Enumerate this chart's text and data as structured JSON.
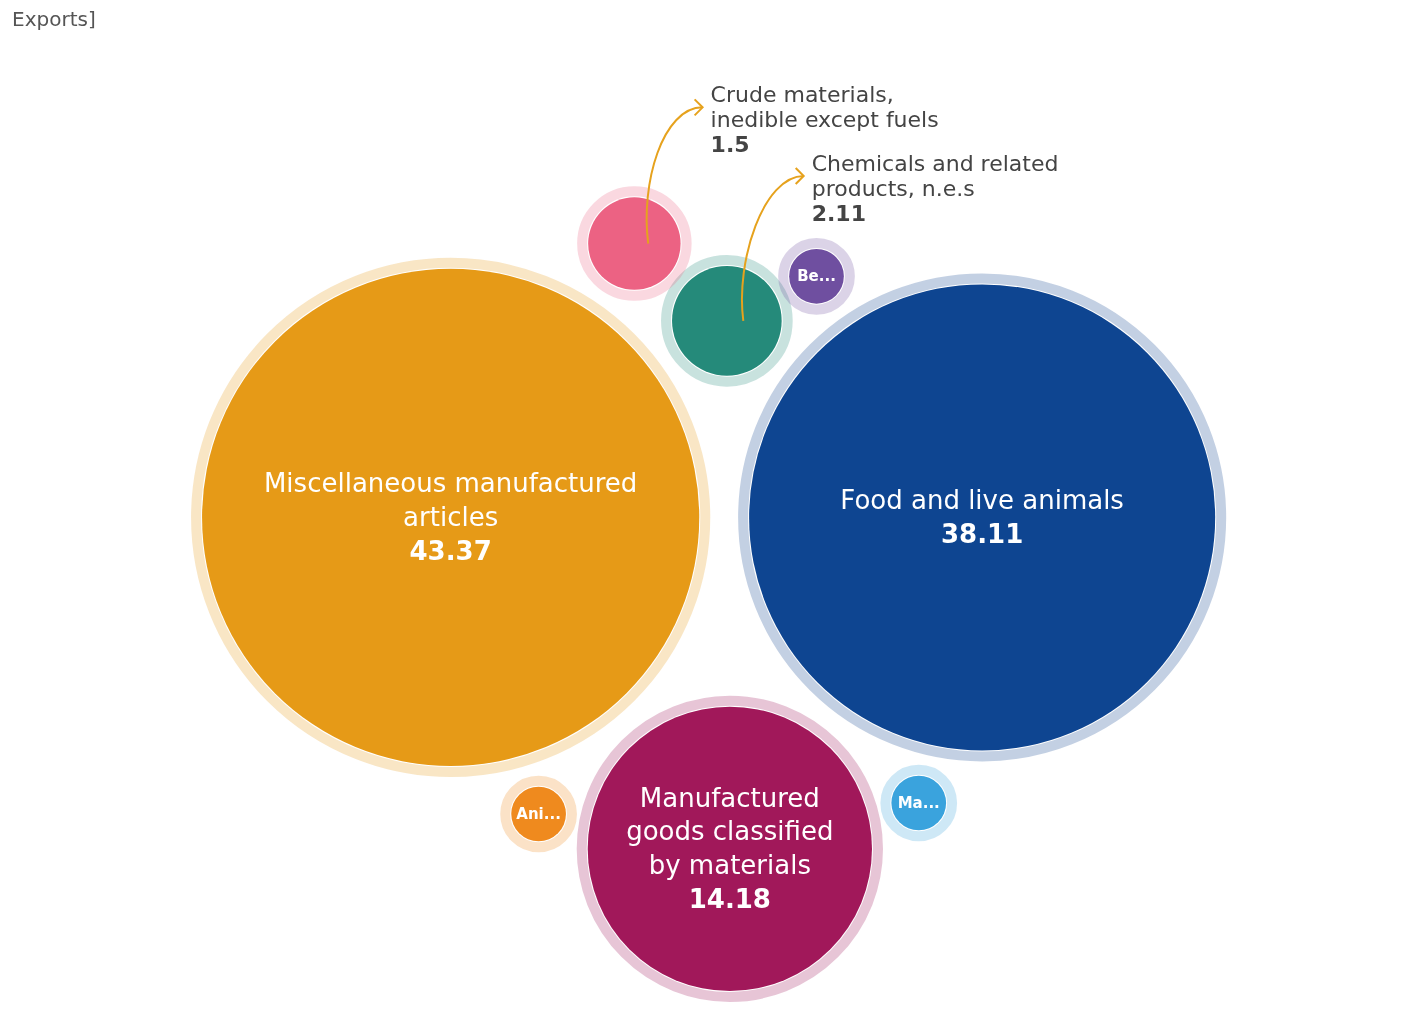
{
  "chart_data": {
    "type": "other",
    "title": "Exports]",
    "categories": [
      "Miscellaneous manufactured articles",
      "Food and live animals",
      "Manufactured goods classified by materials",
      "Chemicals and related products, n.e.s",
      "Crude materials, inedible except fuels",
      "Be...",
      "Ani...",
      "Ma..."
    ],
    "values": [
      43.37,
      38.11,
      14.18,
      2.11,
      1.5,
      null,
      null,
      null
    ],
    "colors": [
      "#e69a17",
      "#0e4591",
      "#a1185a",
      "#258a7a",
      "#ec6283",
      "#6f4fa0",
      "#ef8a1e",
      "#3aa3dd"
    ],
    "data_labels": true
  }
}
